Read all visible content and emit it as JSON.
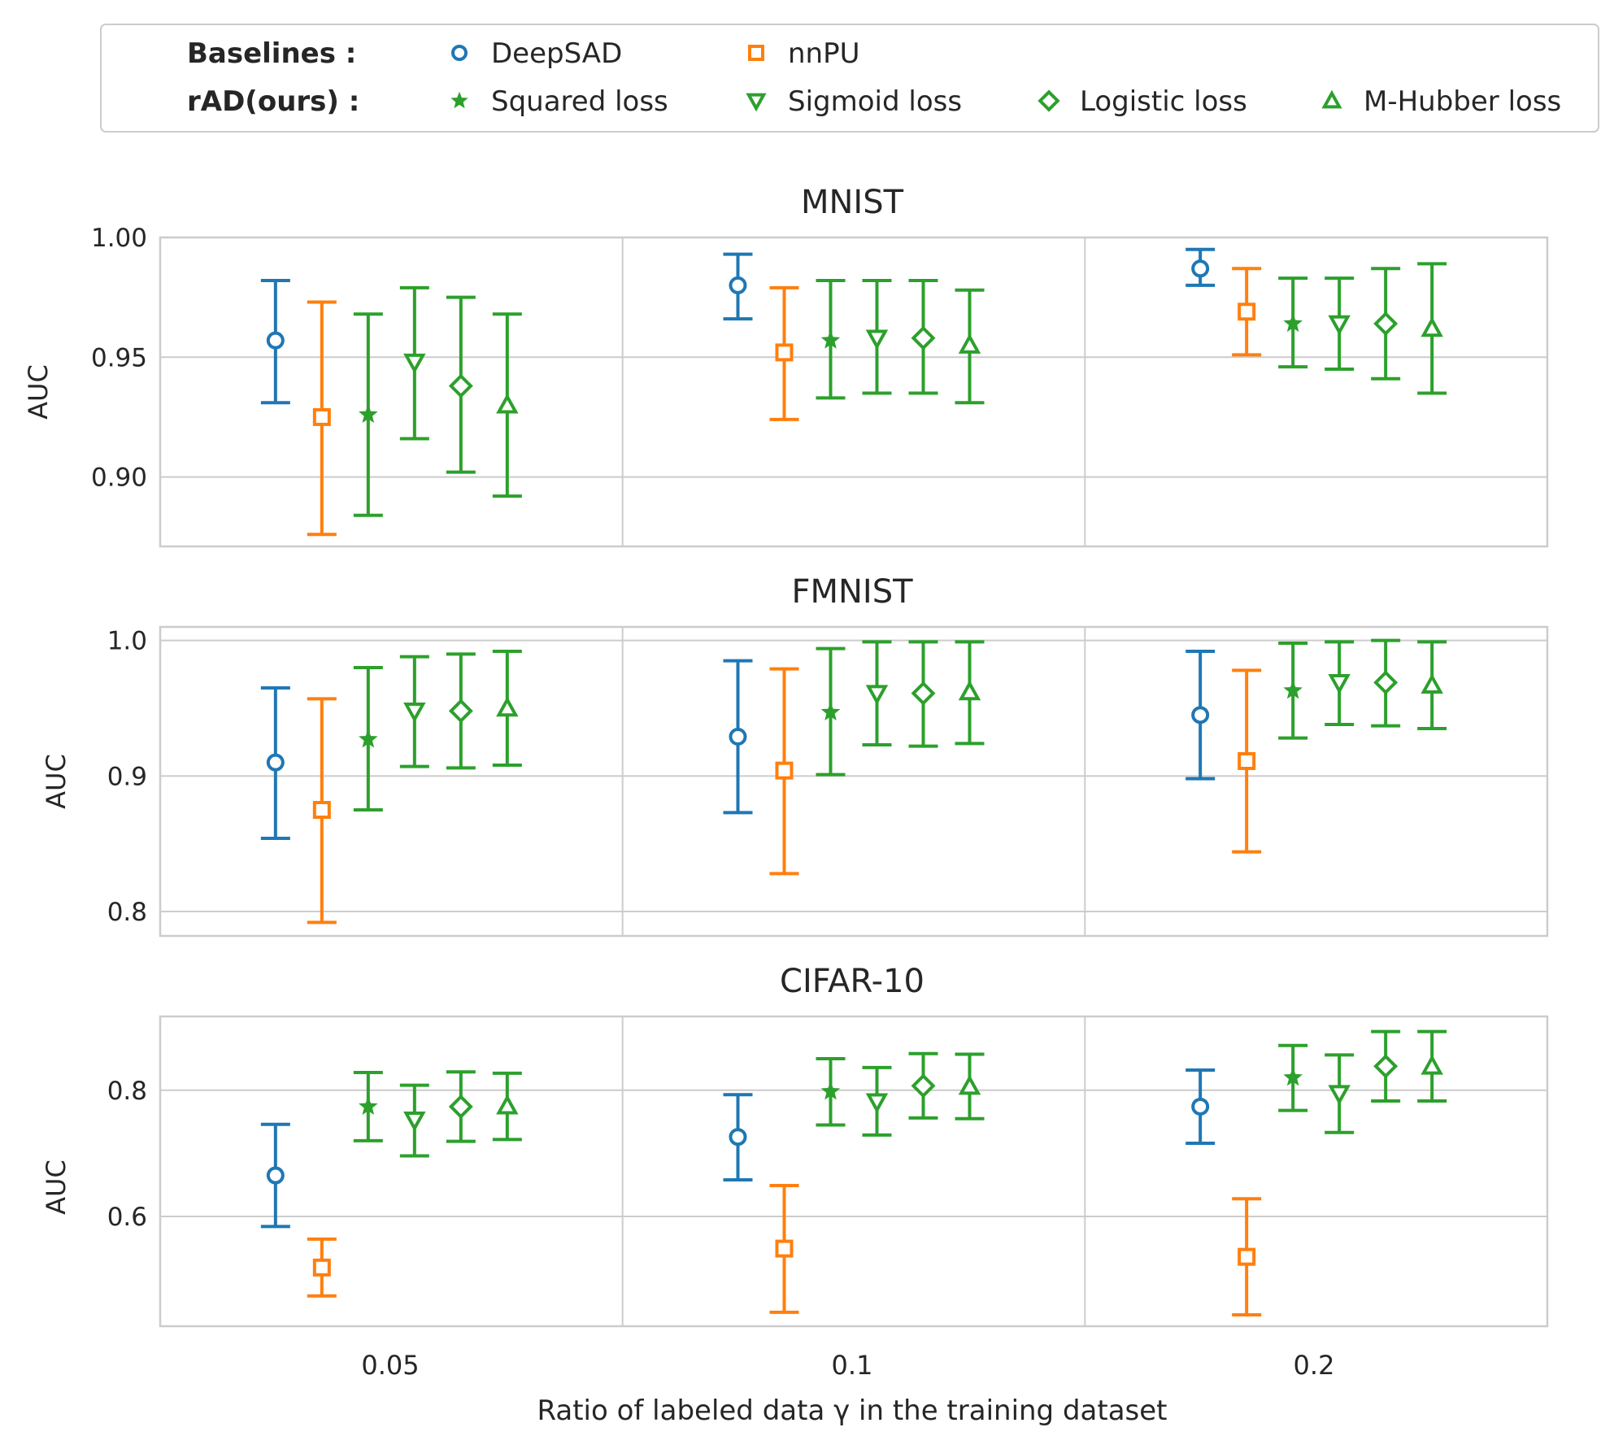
{
  "legend": {
    "baselines_label": "Baselines :",
    "ours_label": "rAD(ours) :",
    "baselines": [
      {
        "name": "DeepSAD",
        "marker": "circle",
        "color": "#1f77b4"
      },
      {
        "name": "nnPU",
        "marker": "square",
        "color": "#ff7f0e"
      }
    ],
    "ours": [
      {
        "name": "Squared loss",
        "marker": "star",
        "color": "#2ca02c"
      },
      {
        "name": "Sigmoid loss",
        "marker": "triangle-down",
        "color": "#2ca02c"
      },
      {
        "name": "Logistic loss",
        "marker": "diamond",
        "color": "#2ca02c"
      },
      {
        "name": "M-Hubber loss",
        "marker": "triangle-up",
        "color": "#2ca02c"
      }
    ]
  },
  "chart_data": [
    {
      "type": "errorbar",
      "title": "MNIST",
      "ylabel": "AUC",
      "xlabel": "Ratio of labeled data γ in the training dataset",
      "categories": [
        "0.05",
        "0.1",
        "0.2"
      ],
      "ylim": [
        0.871,
        1.0
      ],
      "yticks": [
        0.9,
        0.95,
        1.0
      ],
      "ytick_labels": [
        "0.90",
        "0.95",
        "1.00"
      ],
      "series": [
        {
          "name": "DeepSAD",
          "values": [
            0.957,
            0.98,
            0.987
          ],
          "lower": [
            0.931,
            0.966,
            0.98
          ],
          "upper": [
            0.982,
            0.993,
            0.995
          ]
        },
        {
          "name": "nnPU",
          "values": [
            0.925,
            0.952,
            0.969
          ],
          "lower": [
            0.876,
            0.924,
            0.951
          ],
          "upper": [
            0.973,
            0.979,
            0.987
          ]
        },
        {
          "name": "Squared loss",
          "values": [
            0.926,
            0.957,
            0.964
          ],
          "lower": [
            0.884,
            0.933,
            0.946
          ],
          "upper": [
            0.968,
            0.982,
            0.983
          ]
        },
        {
          "name": "Sigmoid loss",
          "values": [
            0.948,
            0.958,
            0.964
          ],
          "lower": [
            0.916,
            0.935,
            0.945
          ],
          "upper": [
            0.979,
            0.982,
            0.983
          ]
        },
        {
          "name": "Logistic loss",
          "values": [
            0.938,
            0.958,
            0.964
          ],
          "lower": [
            0.902,
            0.935,
            0.941
          ],
          "upper": [
            0.975,
            0.982,
            0.987
          ]
        },
        {
          "name": "M-Hubber loss",
          "values": [
            0.93,
            0.955,
            0.962
          ],
          "lower": [
            0.892,
            0.931,
            0.935
          ],
          "upper": [
            0.968,
            0.978,
            0.989
          ]
        }
      ]
    },
    {
      "type": "errorbar",
      "title": "FMNIST",
      "ylabel": "AUC",
      "xlabel": "Ratio of labeled data γ in the training dataset",
      "categories": [
        "0.05",
        "0.1",
        "0.2"
      ],
      "ylim": [
        0.782,
        1.01
      ],
      "yticks": [
        0.8,
        0.9,
        1.0
      ],
      "ytick_labels": [
        "0.8",
        "0.9",
        "1.0"
      ],
      "series": [
        {
          "name": "DeepSAD",
          "values": [
            0.91,
            0.929,
            0.945
          ],
          "lower": [
            0.854,
            0.873,
            0.898
          ],
          "upper": [
            0.965,
            0.985,
            0.992
          ]
        },
        {
          "name": "nnPU",
          "values": [
            0.875,
            0.904,
            0.911
          ],
          "lower": [
            0.792,
            0.828,
            0.844
          ],
          "upper": [
            0.957,
            0.979,
            0.978
          ]
        },
        {
          "name": "Squared loss",
          "values": [
            0.927,
            0.947,
            0.963
          ],
          "lower": [
            0.875,
            0.901,
            0.928
          ],
          "upper": [
            0.98,
            0.994,
            0.998
          ]
        },
        {
          "name": "Sigmoid loss",
          "values": [
            0.948,
            0.961,
            0.969
          ],
          "lower": [
            0.907,
            0.923,
            0.938
          ],
          "upper": [
            0.988,
            0.999,
            0.999
          ]
        },
        {
          "name": "Logistic loss",
          "values": [
            0.948,
            0.961,
            0.969
          ],
          "lower": [
            0.906,
            0.922,
            0.937
          ],
          "upper": [
            0.99,
            0.999,
            1.0
          ]
        },
        {
          "name": "M-Hubber loss",
          "values": [
            0.95,
            0.962,
            0.967
          ],
          "lower": [
            0.908,
            0.924,
            0.935
          ],
          "upper": [
            0.992,
            0.999,
            0.999
          ]
        }
      ]
    },
    {
      "type": "errorbar",
      "title": "CIFAR-10",
      "ylabel": "AUC",
      "xlabel": "Ratio of labeled data γ in the training dataset",
      "categories": [
        "0.05",
        "0.1",
        "0.2"
      ],
      "ylim": [
        0.426,
        0.917
      ],
      "yticks": [
        0.6,
        0.8
      ],
      "ytick_labels": [
        "0.6",
        "0.8"
      ],
      "series": [
        {
          "name": "DeepSAD",
          "values": [
            0.665,
            0.726,
            0.774
          ],
          "lower": [
            0.584,
            0.658,
            0.716
          ],
          "upper": [
            0.746,
            0.793,
            0.832
          ]
        },
        {
          "name": "nnPU",
          "values": [
            0.519,
            0.549,
            0.536
          ],
          "lower": [
            0.474,
            0.448,
            0.444
          ],
          "upper": [
            0.564,
            0.649,
            0.628
          ]
        },
        {
          "name": "Squared loss",
          "values": [
            0.774,
            0.798,
            0.82
          ],
          "lower": [
            0.72,
            0.745,
            0.768
          ],
          "upper": [
            0.828,
            0.85,
            0.871
          ]
        },
        {
          "name": "Sigmoid loss",
          "values": [
            0.753,
            0.782,
            0.795
          ],
          "lower": [
            0.696,
            0.729,
            0.733
          ],
          "upper": [
            0.808,
            0.836,
            0.856
          ]
        },
        {
          "name": "Logistic loss",
          "values": [
            0.774,
            0.807,
            0.838
          ],
          "lower": [
            0.719,
            0.756,
            0.783
          ],
          "upper": [
            0.829,
            0.858,
            0.893
          ]
        },
        {
          "name": "M-Hubber loss",
          "values": [
            0.775,
            0.806,
            0.838
          ],
          "lower": [
            0.722,
            0.755,
            0.783
          ],
          "upper": [
            0.827,
            0.857,
            0.893
          ]
        }
      ]
    }
  ]
}
